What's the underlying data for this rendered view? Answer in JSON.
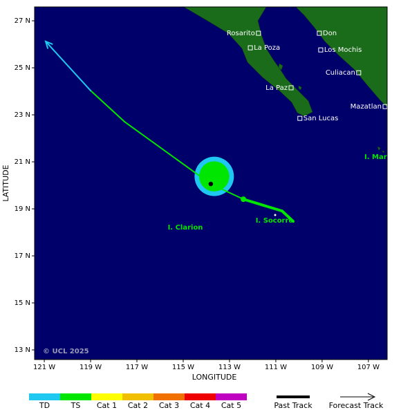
{
  "map": {
    "axes": {
      "xlabel": "LONGITUDE",
      "ylabel": "LATITUDE",
      "xlim": [
        -121.42,
        -106.19
      ],
      "ylim": [
        12.59,
        27.59
      ],
      "xticks": [
        {
          "value": -121,
          "label": "121 W"
        },
        {
          "value": -119,
          "label": "119 W"
        },
        {
          "value": -117,
          "label": "117 W"
        },
        {
          "value": -115,
          "label": "115 W"
        },
        {
          "value": -113,
          "label": "113 W"
        },
        {
          "value": -111,
          "label": "111 W"
        },
        {
          "value": -109,
          "label": "109 W"
        },
        {
          "value": -107,
          "label": "107 W"
        }
      ],
      "yticks": [
        {
          "value": 27,
          "label": "27 N"
        },
        {
          "value": 25,
          "label": "25 N"
        },
        {
          "value": 23,
          "label": "23 N"
        },
        {
          "value": 21,
          "label": "21 N"
        },
        {
          "value": 19,
          "label": "19 N"
        },
        {
          "value": 17,
          "label": "17 N"
        },
        {
          "value": 15,
          "label": "15 N"
        },
        {
          "value": 13,
          "label": "13 N"
        }
      ]
    },
    "cities": [
      {
        "name": "Rosarito",
        "lon": -111.75,
        "lat": 26.47
      },
      {
        "name": "La Poza",
        "lon": -112.1,
        "lat": 25.85
      },
      {
        "name": "Don",
        "lon": -109.12,
        "lat": 26.47
      },
      {
        "name": "Los Mochis",
        "lon": -109.06,
        "lat": 25.76
      },
      {
        "name": "Culiacan",
        "lon": -107.42,
        "lat": 24.79
      },
      {
        "name": "La Paz",
        "lon": -110.34,
        "lat": 24.15
      },
      {
        "name": "Mazatlan",
        "lon": -106.28,
        "lat": 23.35
      },
      {
        "name": "San Lucas",
        "lon": -109.96,
        "lat": 22.85
      }
    ],
    "islands": [
      "I. Clarion",
      "I. Socorro",
      "I. Mar"
    ],
    "copyright": "© UCL 2025",
    "past_track": {
      "lon": [
        -110.25,
        -110.73,
        -112.4
      ],
      "lat": [
        18.47,
        18.91,
        19.41
      ],
      "category": [
        "TS",
        "TS",
        "TS"
      ]
    },
    "forecast_track": {
      "lon": [
        -112.4,
        -113.81,
        -117.54,
        -119.0,
        -120.94
      ],
      "lat": [
        19.41,
        20.06,
        22.71,
        24.03,
        26.12
      ],
      "category": [
        "TS",
        "TS",
        "TS",
        "TD",
        "TD"
      ]
    },
    "current_position": {
      "lon": -113.81,
      "lat": 20.06
    },
    "wind_radii": {
      "lon": -113.66,
      "lat": 20.38,
      "rings": [
        {
          "category": "TD",
          "radius_deg": 0.85
        },
        {
          "category": "TS",
          "radius_deg": 0.65
        }
      ]
    },
    "legend": {
      "categories": [
        {
          "name": "TD",
          "color": "#1ec8f0"
        },
        {
          "name": "TS",
          "color": "#00e600"
        },
        {
          "name": "Cat 1",
          "color": "#ffff00"
        },
        {
          "name": "Cat 2",
          "color": "#f0c000"
        },
        {
          "name": "Cat 3",
          "color": "#f07000"
        },
        {
          "name": "Cat 4",
          "color": "#ee0000"
        },
        {
          "name": "Cat 5",
          "color": "#c000c0"
        }
      ],
      "past": "Past Track",
      "forecast": "Forecast Track"
    }
  }
}
